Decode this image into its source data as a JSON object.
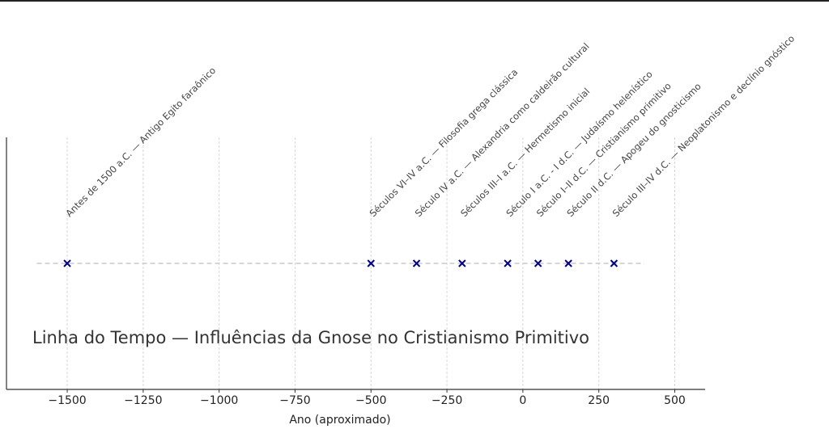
{
  "chart_data": {
    "type": "scatter",
    "title": "Linha do Tempo — Influências da Gnose no Cristianismo Primitivo",
    "xlabel": "Ano (aproximado)",
    "ylabel": "",
    "xlim": [
      -1700,
      600
    ],
    "ylim": [
      -1,
      1
    ],
    "xticks": [
      -1500,
      -1250,
      -1000,
      -750,
      -500,
      -250,
      0,
      250,
      500
    ],
    "xtick_labels": [
      "−1500",
      "−1250",
      "−1000",
      "−750",
      "−500",
      "−250",
      "0",
      "250",
      "500"
    ],
    "grid": "x, dashed",
    "baseline": {
      "from": -1600,
      "to": 400,
      "style": "dashed"
    },
    "marker_color": "#00008b",
    "points": [
      {
        "x": -1500,
        "y": 0,
        "label": "Antes de 1500 a.C. — Antigo Egito faraônico"
      },
      {
        "x": -500,
        "y": 0,
        "label": "Séculos VI–IV a.C. — Filosofia grega clássica"
      },
      {
        "x": -350,
        "y": 0,
        "label": "Século IV a.C. — Alexandria como caldeirão cultural"
      },
      {
        "x": -200,
        "y": 0,
        "label": "Séculos III–I a.C. — Hermetismo inicial"
      },
      {
        "x": -50,
        "y": 0,
        "label": "Século I a.C. - I d.C. — Judaísmo helenístico"
      },
      {
        "x": 50,
        "y": 0,
        "label": "Século I–II d.C. — Cristianismo primitivo"
      },
      {
        "x": 150,
        "y": 0,
        "label": "Século II d.C. — Apogeu do gnosticismo"
      },
      {
        "x": 300,
        "y": 0,
        "label": "Século III–IV d.C. — Neoplatonismo e declínio gnóstico"
      }
    ]
  }
}
